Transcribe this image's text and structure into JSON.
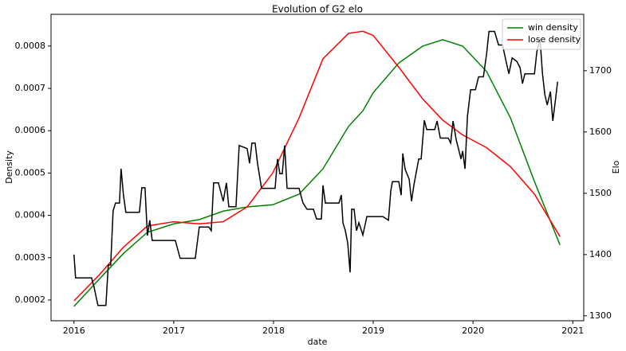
{
  "chart_data": {
    "type": "line",
    "title": "Evolution of G2 elo",
    "xlabel": "date",
    "ylabel": "Density",
    "y2label": "Elo",
    "xlim": [
      2015.77,
      2021.11
    ],
    "xticks": [
      2016,
      2017,
      2018,
      2019,
      2020,
      2021
    ],
    "ylim": [
      0.000151,
      0.000875
    ],
    "yticks": [
      0.0002,
      0.0003,
      0.0004,
      0.0005,
      0.0006,
      0.0007,
      0.0008
    ],
    "y2lim": [
      1292,
      1792
    ],
    "y2ticks": [
      1300,
      1400,
      1500,
      1600,
      1700
    ],
    "legend": "upper right",
    "series": [
      {
        "name": "win density",
        "color": "#008000",
        "x": [
          2016,
          2016.256,
          2016.496,
          2016.736,
          2017,
          2017.256,
          2017.496,
          2017.736,
          2017.992,
          2018.256,
          2018.496,
          2018.752,
          2018.896,
          2019,
          2019.256,
          2019.496,
          2019.696,
          2019.896,
          2020.136,
          2020.376,
          2020.616,
          2020.872
        ],
        "values": [
          0.000185,
          0.00025,
          0.00031,
          0.00036,
          0.00038,
          0.00039,
          0.00041,
          0.00042,
          0.000425,
          0.00045,
          0.00051,
          0.00061,
          0.000647,
          0.00069,
          0.00076,
          0.0008,
          0.000815,
          0.0008,
          0.00074,
          0.00063,
          0.00048,
          0.00033
        ]
      },
      {
        "name": "lose density",
        "color": "#ff0000",
        "x": [
          2016,
          2016.256,
          2016.496,
          2016.736,
          2017,
          2017.256,
          2017.496,
          2017.736,
          2017.992,
          2018.256,
          2018.496,
          2018.752,
          2018.896,
          2019,
          2019.256,
          2019.496,
          2019.696,
          2019.896,
          2020.136,
          2020.376,
          2020.616,
          2020.872
        ],
        "values": [
          0.000198,
          0.00026,
          0.000325,
          0.000375,
          0.000385,
          0.00038,
          0.000385,
          0.00042,
          0.0005,
          0.00063,
          0.00077,
          0.00083,
          0.000835,
          0.000825,
          0.00075,
          0.000675,
          0.000625,
          0.00059,
          0.00056,
          0.000515,
          0.00045,
          0.00035
        ]
      },
      {
        "color": "#000000",
        "axis": "y2",
        "x": [
          2016,
          2016.016,
          2016.176,
          2016.2,
          2016.24,
          2016.32,
          2016.344,
          2016.368,
          2016.392,
          2016.416,
          2016.456,
          2016.472,
          2016.496,
          2016.52,
          2016.656,
          2016.68,
          2016.712,
          2016.736,
          2016.76,
          2016.784,
          2017.016,
          2017.064,
          2017.216,
          2017.256,
          2017.352,
          2017.376,
          2017.4,
          2017.448,
          2017.496,
          2017.528,
          2017.552,
          2017.624,
          2017.656,
          2017.736,
          2017.76,
          2017.784,
          2017.816,
          2017.84,
          2017.88,
          2018.016,
          2018.04,
          2018.064,
          2018.088,
          2018.112,
          2018.136,
          2018.256,
          2018.296,
          2018.336,
          2018.4,
          2018.432,
          2018.48,
          2018.496,
          2018.52,
          2018.656,
          2018.68,
          2018.696,
          2018.72,
          2018.744,
          2018.768,
          2018.784,
          2018.808,
          2018.832,
          2018.856,
          2018.896,
          2018.936,
          2019.096,
          2019.152,
          2019.176,
          2019.192,
          2019.256,
          2019.28,
          2019.296,
          2019.32,
          2019.36,
          2019.384,
          2019.408,
          2019.456,
          2019.48,
          2019.512,
          2019.536,
          2019.616,
          2019.64,
          2019.672,
          2019.752,
          2019.776,
          2019.8,
          2019.832,
          2019.88,
          2019.896,
          2019.92,
          2019.944,
          2019.976,
          2020.024,
          2020.056,
          2020.104,
          2020.136,
          2020.16,
          2020.216,
          2020.256,
          2020.296,
          2020.336,
          2020.36,
          2020.392,
          2020.44,
          2020.472,
          2020.496,
          2020.52,
          2020.616,
          2020.64,
          2020.672,
          2020.696,
          2020.72,
          2020.744,
          2020.776,
          2020.8,
          2020.824,
          2020.848
        ],
        "values": [
          1400,
          1362,
          1362,
          1348,
          1317,
          1317,
          1383,
          1383,
          1471,
          1484,
          1484,
          1540,
          1497,
          1469,
          1469,
          1509,
          1509,
          1431,
          1456,
          1423,
          1423,
          1394,
          1394,
          1445,
          1445,
          1439,
          1517,
          1517,
          1487,
          1517,
          1478,
          1478,
          1578,
          1573,
          1549,
          1582,
          1582,
          1549,
          1508,
          1508,
          1556,
          1532,
          1532,
          1578,
          1508,
          1508,
          1484,
          1474,
          1474,
          1458,
          1458,
          1513,
          1484,
          1484,
          1497,
          1452,
          1439,
          1419,
          1371,
          1474,
          1474,
          1439,
          1452,
          1432,
          1462,
          1462,
          1456,
          1504,
          1519,
          1519,
          1497,
          1565,
          1539,
          1523,
          1487,
          1514,
          1556,
          1556,
          1619,
          1604,
          1604,
          1618,
          1590,
          1590,
          1582,
          1618,
          1587,
          1556,
          1569,
          1540,
          1625,
          1669,
          1669,
          1690,
          1690,
          1727,
          1764,
          1764,
          1742,
          1742,
          1712,
          1695,
          1721,
          1715,
          1705,
          1679,
          1695,
          1695,
          1731,
          1752,
          1696,
          1661,
          1644,
          1666,
          1618,
          1649,
          1682
        ]
      }
    ]
  }
}
